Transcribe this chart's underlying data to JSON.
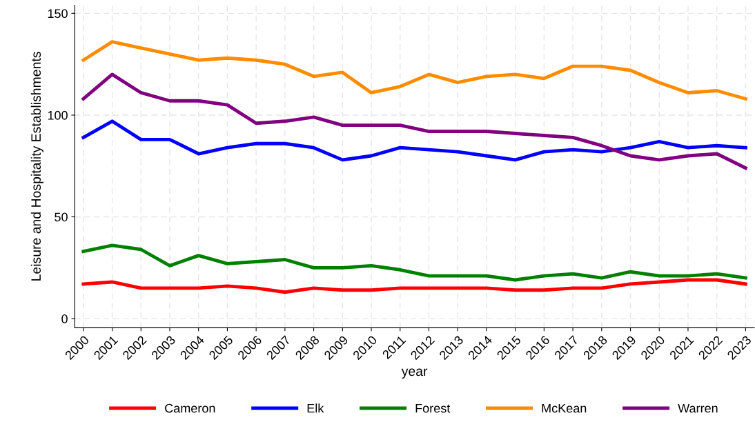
{
  "chart_data": {
    "type": "line",
    "xlabel": "year",
    "ylabel": "Leisure and Hospitality Establishments",
    "categories": [
      "2000",
      "2001",
      "2002",
      "2003",
      "2004",
      "2005",
      "2006",
      "2007",
      "2008",
      "2009",
      "2010",
      "2011",
      "2012",
      "2013",
      "2014",
      "2015",
      "2016",
      "2017",
      "2018",
      "2019",
      "2020",
      "2021",
      "2022",
      "2023"
    ],
    "series": [
      {
        "name": "Cameron",
        "color": "#ff0000",
        "values": [
          17,
          18,
          15,
          15,
          15,
          16,
          15,
          13,
          15,
          14,
          14,
          15,
          15,
          15,
          15,
          14,
          14,
          15,
          15,
          17,
          18,
          19,
          19,
          17
        ]
      },
      {
        "name": "Elk",
        "color": "#0000ff",
        "values": [
          89,
          97,
          88,
          88,
          81,
          84,
          86,
          86,
          84,
          78,
          80,
          84,
          83,
          82,
          80,
          78,
          82,
          83,
          82,
          84,
          87,
          84,
          85,
          84
        ]
      },
      {
        "name": "Forest",
        "color": "#008000",
        "values": [
          33,
          36,
          34,
          26,
          31,
          27,
          28,
          29,
          25,
          25,
          26,
          24,
          21,
          21,
          21,
          19,
          21,
          22,
          20,
          23,
          21,
          21,
          22,
          20
        ]
      },
      {
        "name": "McKean",
        "color": "#ff8c00",
        "values": [
          127,
          136,
          133,
          130,
          127,
          128,
          127,
          125,
          119,
          121,
          111,
          114,
          120,
          116,
          119,
          120,
          118,
          124,
          124,
          122,
          116,
          111,
          112,
          108
        ]
      },
      {
        "name": "Warren",
        "color": "#800080",
        "values": [
          108,
          120,
          111,
          107,
          107,
          105,
          96,
          97,
          99,
          95,
          95,
          95,
          92,
          92,
          92,
          91,
          90,
          89,
          85,
          80,
          78,
          80,
          81,
          74
        ]
      }
    ],
    "ylim": [
      -4.5,
      154
    ],
    "yticks": [
      0,
      50,
      100,
      150
    ],
    "grid": true,
    "legend": "bottom",
    "marker": "none",
    "line_style": "solid"
  }
}
